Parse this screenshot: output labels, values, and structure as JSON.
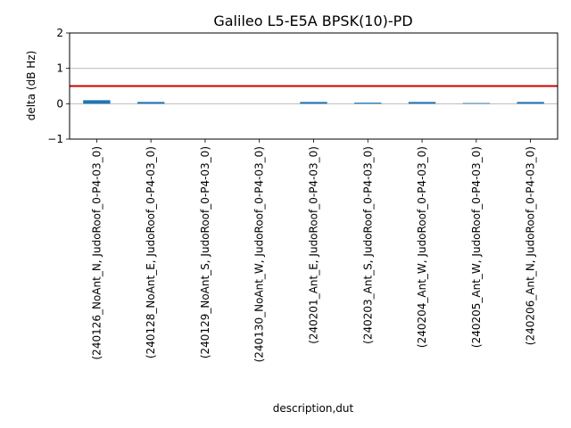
{
  "chart_data": {
    "type": "bar",
    "title": "Galileo L5-E5A BPSK(10)-PD",
    "xlabel": "description,dut",
    "ylabel": "delta (dB Hz)",
    "ylim": [
      -1,
      2
    ],
    "yticks": [
      -1,
      0,
      1,
      2
    ],
    "ytick_labels": [
      "−1",
      "0",
      "1",
      "2"
    ],
    "grid": "horizontal",
    "categories": [
      "(240126_NoAnt_N, JudoRoof_0-P4-03_0)",
      "(240128_NoAnt_E, JudoRoof_0-P4-03_0)",
      "(240129_NoAnt_S, JudoRoof_0-P4-03_0)",
      "(240130_NoAnt_W, JudoRoof_0-P4-03_0)",
      "(240201_Ant_E, JudoRoof_0-P4-03_0)",
      "(240203_Ant_S, JudoRoof_0-P4-03_0)",
      "(240204_Ant_W, JudoRoof_0-P4-03_0)",
      "(240205_Ant_W, JudoRoof_0-P4-03_0)",
      "(240206_Ant_N, JudoRoof_0-P4-03_0)"
    ],
    "values": [
      0.1,
      0.05,
      0.0,
      0.0,
      0.05,
      0.03,
      0.05,
      0.02,
      0.05
    ],
    "bar_color": "#1f77b4",
    "threshold": {
      "value": 0.5,
      "color": "#cc0000"
    }
  }
}
